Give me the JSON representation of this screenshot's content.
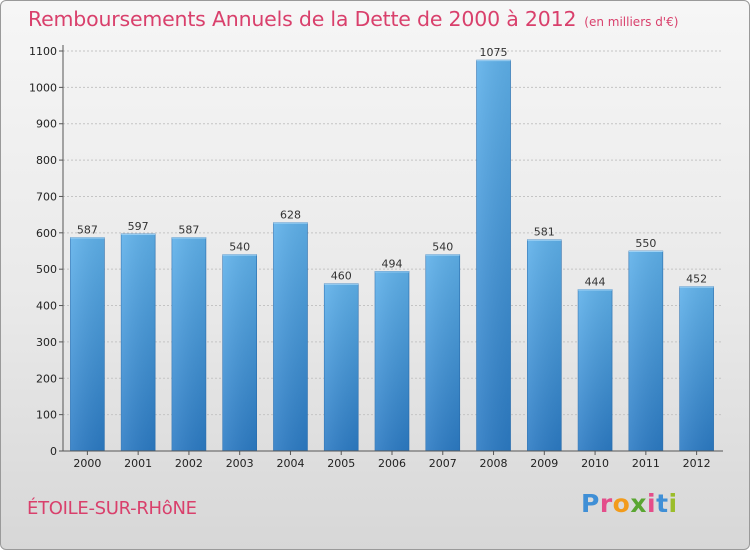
{
  "chart_data": {
    "type": "bar",
    "title": "Remboursements Annuels de la Dette de 2000 à 2012",
    "subtitle": "(en milliers d'€)",
    "categories": [
      "2000",
      "2001",
      "2002",
      "2003",
      "2004",
      "2005",
      "2006",
      "2007",
      "2008",
      "2009",
      "2010",
      "2011",
      "2012"
    ],
    "values": [
      587,
      597,
      587,
      540,
      628,
      460,
      494,
      540,
      1075,
      581,
      444,
      550,
      452
    ],
    "ylim": [
      0,
      1100
    ],
    "yticks": [
      0,
      100,
      200,
      300,
      400,
      500,
      600,
      700,
      800,
      900,
      1000,
      1100
    ],
    "grid": true,
    "bar_color": "#3d8fd6"
  },
  "footer": {
    "city": "ÉTOILE-SUR-RHôNE",
    "logo_letters": [
      "P",
      "r",
      "o",
      "x",
      "i",
      "t",
      "i"
    ],
    "logo_colors": [
      "#3f8fd6",
      "#e44d8a",
      "#f29b1b",
      "#5aa632",
      "#e44d8a",
      "#3f8fd6",
      "#9bbd2a"
    ]
  }
}
